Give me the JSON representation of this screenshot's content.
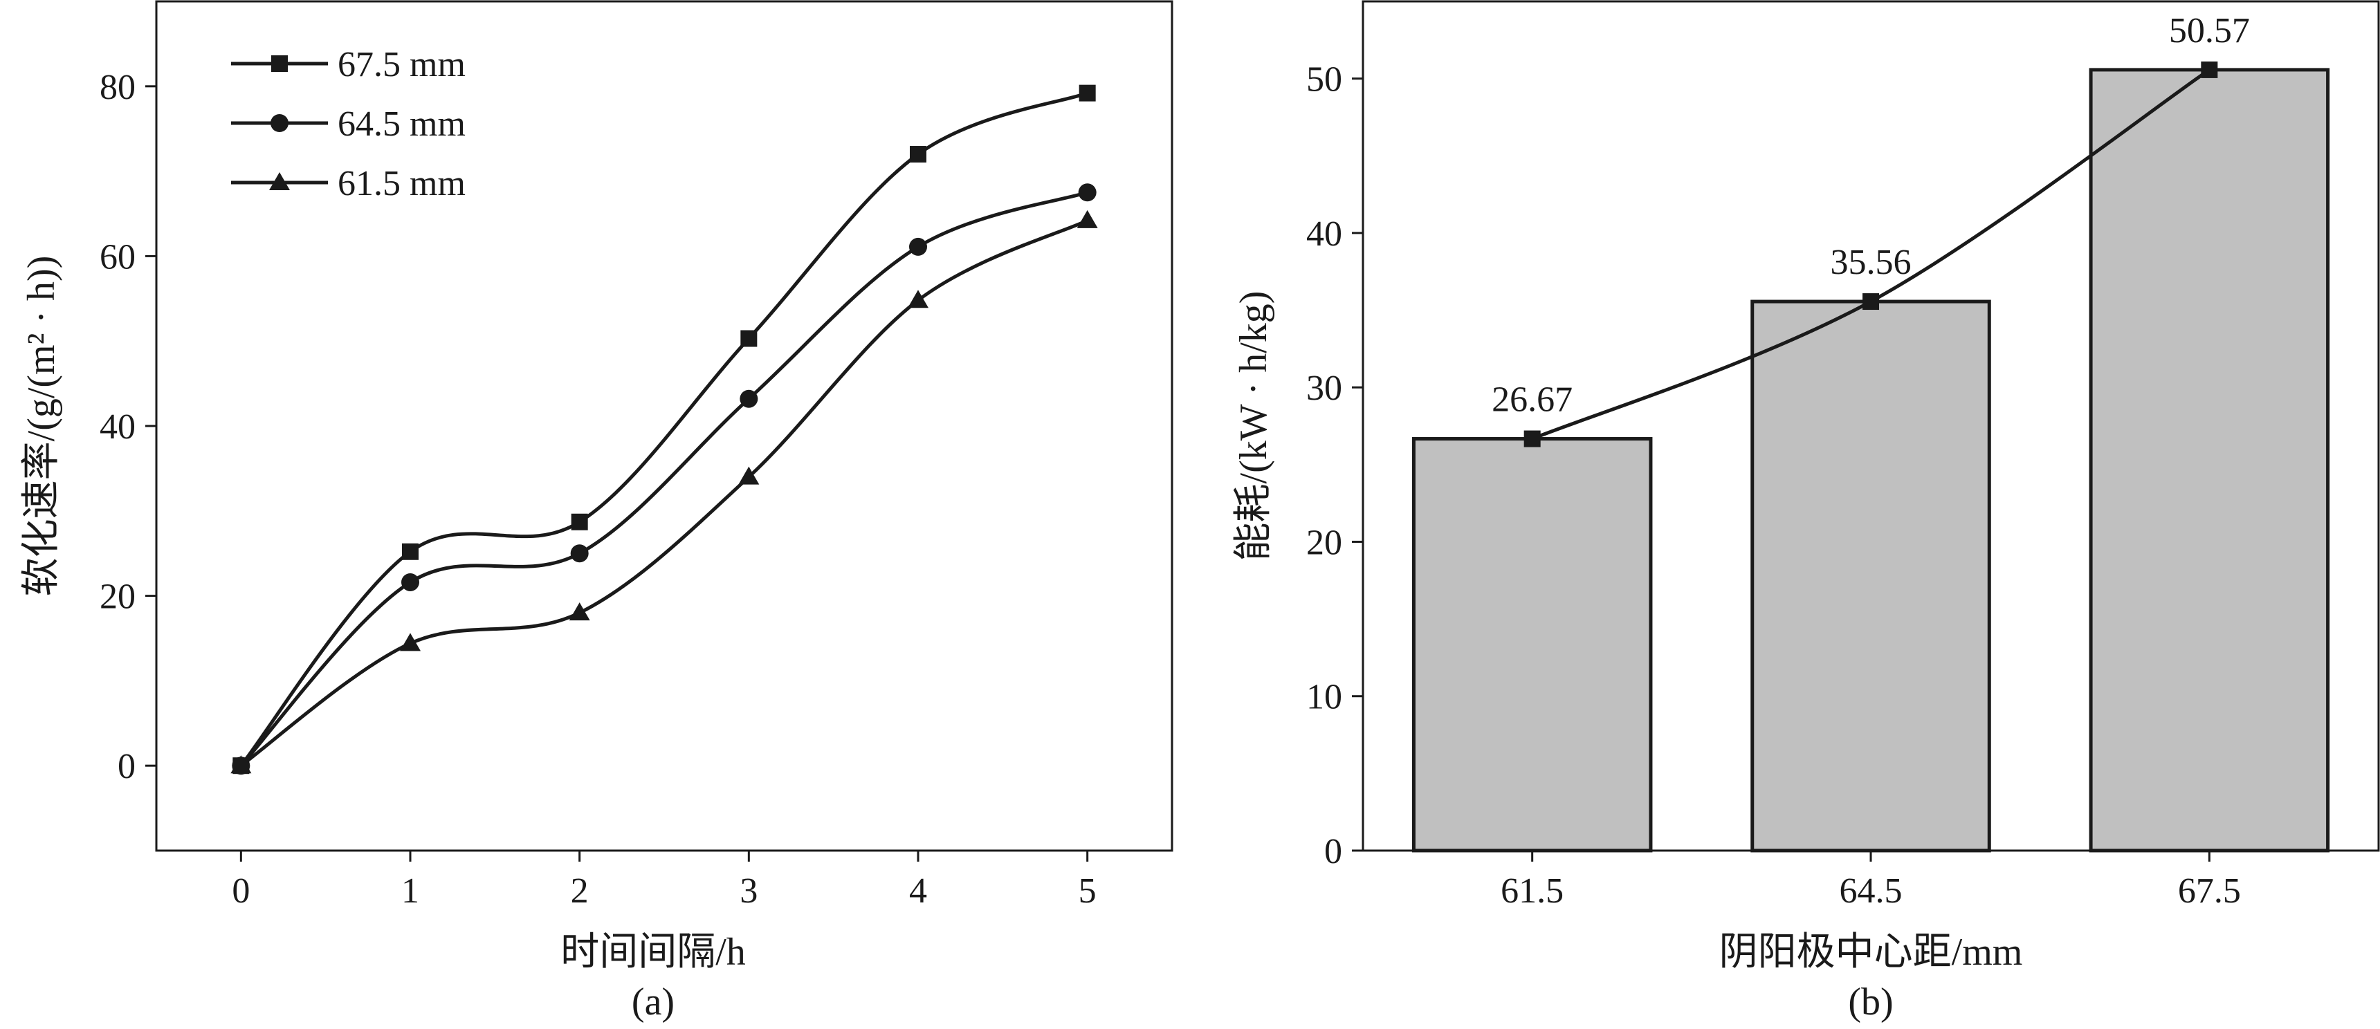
{
  "chart_data": [
    {
      "type": "line",
      "panel_label": "(a)",
      "xlabel": "时间间隔/h",
      "ylabel": "软化速率/(g/(m² · h))",
      "x": [
        0,
        1,
        2,
        3,
        4,
        5
      ],
      "xlim": [
        -0.5,
        5.5
      ],
      "ylim": [
        -10,
        90
      ],
      "xticks": [
        "0",
        "1",
        "2",
        "3",
        "4",
        "5"
      ],
      "yticks": [
        "0",
        "20",
        "40",
        "60",
        "80"
      ],
      "smooth": true,
      "grid": false,
      "legend_position": "top-left",
      "series": [
        {
          "name": "67.5 mm",
          "marker": "square",
          "values": [
            0,
            25.2,
            28.7,
            50.3,
            72.0,
            79.2
          ]
        },
        {
          "name": "64.5 mm",
          "marker": "circle",
          "values": [
            0,
            21.6,
            25.0,
            43.2,
            61.1,
            67.5
          ]
        },
        {
          "name": "61.5 mm",
          "marker": "triangle",
          "values": [
            0,
            14.4,
            18.0,
            34.0,
            54.8,
            64.2
          ]
        }
      ]
    },
    {
      "type": "bar",
      "panel_label": "(b)",
      "xlabel": "阴阳极中心距/mm",
      "ylabel": "能耗/(kW · h/kg)",
      "categories": [
        "61.5",
        "64.5",
        "67.5"
      ],
      "values": [
        26.67,
        35.56,
        50.57
      ],
      "data_labels": [
        "26.67",
        "35.56",
        "50.57"
      ],
      "ylim": [
        0,
        55
      ],
      "yticks": [
        "0",
        "10",
        "20",
        "30",
        "40",
        "50"
      ],
      "overlay_line": true,
      "grid": false,
      "colors": {
        "bar_fill": "#c0c0c0",
        "stroke": "#1a1a1a"
      }
    }
  ]
}
